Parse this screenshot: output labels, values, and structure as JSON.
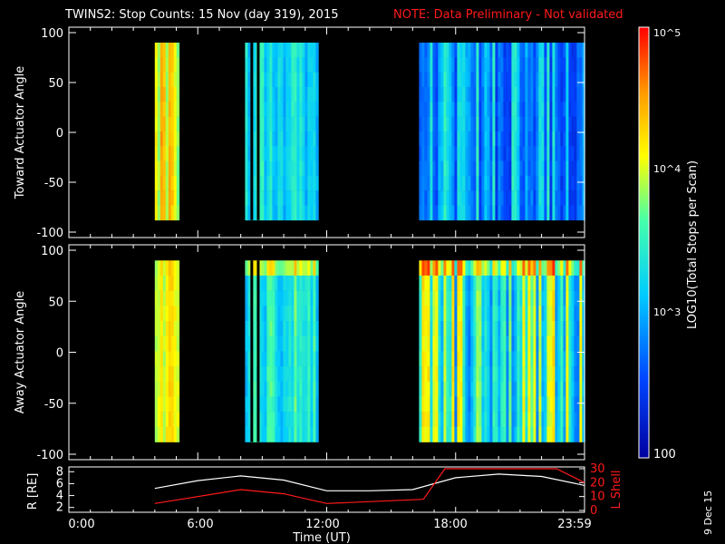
{
  "header": {
    "title": "TWINS2: Stop Counts: 15 Nov (day 319), 2015",
    "note": "NOTE: Data Preliminary - Not validated"
  },
  "colors": {
    "background": "#000000",
    "axis": "#ffffff",
    "note": "#ff1a1a",
    "l_shell": "#ff1a1a",
    "radius": "#ffffff"
  },
  "colorbar": {
    "label": "LOG10(Total Stops per Scan)",
    "ticks": [
      "10^5",
      "10^4",
      "10^3",
      "100"
    ],
    "range": [
      100,
      100000
    ]
  },
  "footer": {
    "xlabel": "Time (UT)",
    "xticks": [
      "0:00",
      "6:00",
      "12:00",
      "18:00",
      "23:59"
    ],
    "date_stamp": "9 Dec 15"
  },
  "chart_data": [
    {
      "type": "heatmap",
      "panel": "top",
      "ylabel": "Toward Actuator Angle",
      "ylim": [
        -100,
        100
      ],
      "yticks": [
        "100",
        "50",
        "0",
        "-50",
        "-100"
      ],
      "x_unit": "hours UT",
      "xlim": [
        0,
        24
      ],
      "segments": [
        {
          "start": 4.0,
          "end": 5.1,
          "level": "yellow-orange"
        },
        {
          "start": 8.2,
          "end": 11.6,
          "level": "cyan"
        },
        {
          "start": 16.3,
          "end": 24.0,
          "level": "blue-cyan"
        }
      ]
    },
    {
      "type": "heatmap",
      "panel": "middle",
      "ylabel": "Away Actuator Angle",
      "ylim": [
        -100,
        100
      ],
      "yticks": [
        "100",
        "50",
        "0",
        "-50",
        "-100"
      ],
      "x_unit": "hours UT",
      "xlim": [
        0,
        24
      ],
      "segments": [
        {
          "start": 4.0,
          "end": 5.1,
          "level": "yellow-orange"
        },
        {
          "start": 8.2,
          "end": 11.6,
          "level": "cyan-green"
        },
        {
          "start": 16.3,
          "end": 24.0,
          "level": "orange-cyan"
        }
      ]
    },
    {
      "type": "line",
      "panel": "bottom",
      "ylabel_left": "R [RE]",
      "ylabel_right": "L Shell",
      "yticks_left": [
        "2",
        "4",
        "6",
        "8"
      ],
      "yticks_right": [
        "0",
        "10",
        "20",
        "30"
      ],
      "ylim_left": [
        1.5,
        8.5
      ],
      "ylim_right": [
        0,
        30
      ],
      "xlim": [
        0,
        24
      ],
      "series": [
        {
          "name": "R",
          "x": [
            4,
            6,
            8,
            10,
            12,
            14,
            16,
            18,
            20,
            22,
            24
          ],
          "y": [
            5.2,
            6.5,
            7.3,
            6.6,
            4.8,
            4.8,
            5.0,
            7.0,
            7.6,
            7.2,
            5.7
          ]
        },
        {
          "name": "L Shell",
          "x": [
            4,
            8,
            10,
            12,
            16.5,
            17.5,
            22.7,
            24
          ],
          "y": [
            5,
            15,
            12,
            5,
            8,
            30,
            30,
            20
          ]
        }
      ]
    }
  ]
}
